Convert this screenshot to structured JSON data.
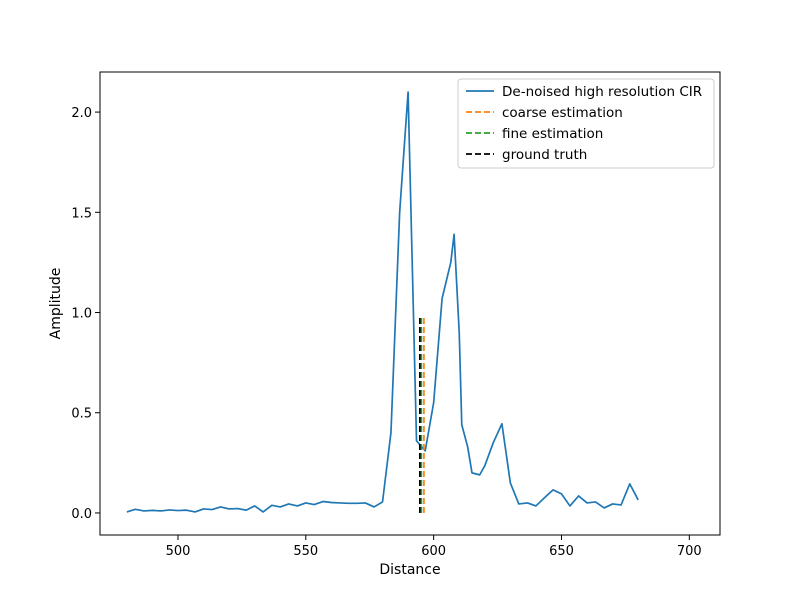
{
  "chart_data": {
    "type": "line",
    "title": "",
    "xlabel": "Distance",
    "ylabel": "Amplitude",
    "xlim": [
      469.5,
      712.0
    ],
    "ylim": [
      -0.11,
      2.2
    ],
    "xticks": [
      500,
      550,
      600,
      650,
      700
    ],
    "yticks": [
      0.0,
      0.5,
      1.0,
      1.5,
      2.0
    ],
    "xtick_labels": [
      "500",
      "550",
      "600",
      "650",
      "700"
    ],
    "ytick_labels": [
      "0.0",
      "0.5",
      "1.0",
      "1.5",
      "2.0"
    ],
    "grid": false,
    "legend_position": "top-right",
    "series": [
      {
        "name": "De-noised high resolution CIR",
        "color": "#1f77b4",
        "style": "solid",
        "x": [
          480.0,
          483.3,
          486.7,
          490.0,
          493.3,
          496.7,
          500.0,
          503.3,
          506.7,
          510.0,
          513.3,
          516.7,
          520.0,
          523.3,
          526.7,
          530.0,
          533.3,
          536.7,
          540.0,
          543.3,
          546.7,
          550.0,
          553.3,
          556.7,
          560.0,
          563.3,
          566.7,
          570.0,
          573.3,
          576.7,
          580.0,
          583.3,
          586.7,
          590.0,
          593.3,
          596.7,
          600.0,
          603.3,
          606.7,
          608.0,
          610.0,
          611.0,
          613.3,
          615.0,
          618.0,
          620.0,
          623.3,
          626.7,
          630.0,
          633.3,
          636.7,
          640.0,
          643.3,
          646.7,
          650.0,
          653.3,
          656.7,
          660.0,
          663.3,
          666.7,
          670.0,
          673.3,
          676.7,
          680.0,
          683.3,
          686.7,
          690.0,
          693.3,
          696.7,
          700.0
        ],
        "y": [
          0.005,
          0.018,
          0.01,
          0.013,
          0.01,
          0.015,
          0.012,
          0.014,
          0.005,
          0.02,
          0.017,
          0.03,
          0.02,
          0.022,
          0.014,
          0.035,
          0.005,
          0.038,
          0.03,
          0.045,
          0.035,
          0.05,
          0.042,
          0.057,
          0.052,
          0.05,
          0.048,
          0.048,
          0.05,
          0.03,
          0.055,
          0.4,
          1.5,
          2.1,
          0.36,
          0.31,
          0.55,
          1.07,
          1.25,
          1.39,
          0.9,
          0.44,
          0.33,
          0.2,
          0.19,
          0.235,
          0.35,
          0.445,
          0.15,
          0.045,
          0.05,
          0.035,
          0.075,
          0.115,
          0.095,
          0.035,
          0.085,
          0.05,
          0.055,
          0.025,
          0.045,
          0.04,
          0.145,
          0.065,
          null,
          null,
          null,
          null,
          null,
          null
        ]
      },
      {
        "name": "coarse estimation",
        "color": "#ff7f0e",
        "style": "dashed",
        "x": [
          596.2,
          596.2
        ],
        "y": [
          0.0,
          0.98
        ]
      },
      {
        "name": "fine estimation",
        "color": "#2ca02c",
        "style": "dashed",
        "x": [
          595.2,
          595.2
        ],
        "y": [
          0.0,
          0.98
        ]
      },
      {
        "name": "ground truth",
        "color": "#000000",
        "style": "dashed",
        "x": [
          594.6,
          594.6
        ],
        "y": [
          0.0,
          0.98
        ]
      }
    ]
  }
}
